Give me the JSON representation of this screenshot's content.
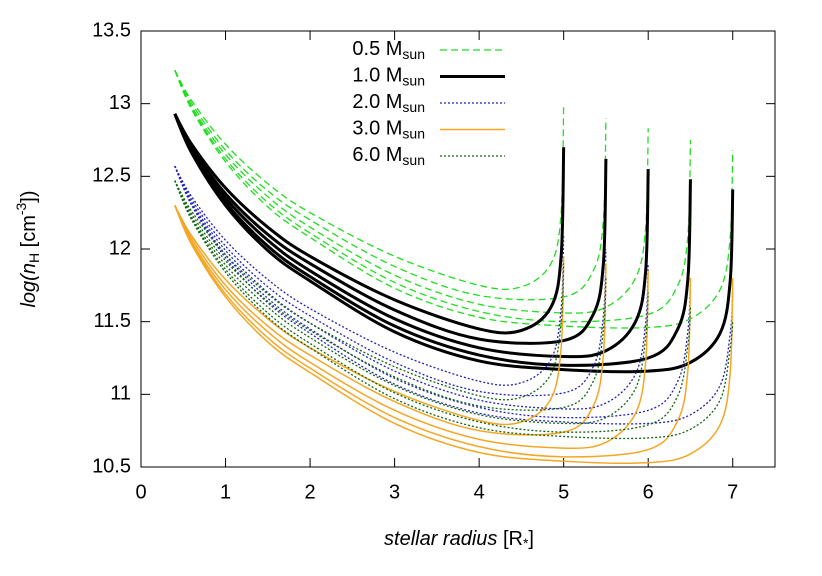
{
  "chart_data": {
    "type": "line",
    "xlabel": [
      "stellar radius",
      " [R",
      "*",
      "]"
    ],
    "ylabel": [
      "log(",
      "n",
      "H",
      " [cm",
      "-3",
      "])"
    ],
    "xlim": [
      0,
      7.5
    ],
    "xticks": [
      0,
      1,
      2,
      3,
      4,
      5,
      6,
      7
    ],
    "ylim": [
      10.5,
      13.5
    ],
    "yticks": [
      10.5,
      11,
      11.5,
      12,
      12.5,
      13,
      13.5
    ],
    "legend": "top-center",
    "series": [
      {
        "name": "0.5 M",
        "name_sub": "sun",
        "color": "#22dd22",
        "dash": "7,4",
        "width": 1.3,
        "curves": [
          {
            "x": [
              0.4,
              0.6,
              1,
              1.5,
              2,
              3,
              4,
              4.5,
              4.85,
              4.97,
              5
            ],
            "values": [
              13.23,
              13.02,
              12.72,
              12.45,
              12.25,
              11.95,
              11.75,
              11.74,
              11.9,
              12.25,
              13.0
            ]
          },
          {
            "x": [
              0.4,
              0.6,
              1,
              1.5,
              2,
              3,
              4,
              5,
              5.35,
              5.47,
              5.5
            ],
            "values": [
              13.23,
              13.0,
              12.68,
              12.4,
              12.2,
              11.88,
              11.68,
              11.67,
              11.85,
              12.2,
              12.9
            ]
          },
          {
            "x": [
              0.4,
              0.6,
              1,
              1.5,
              2,
              3,
              4,
              5,
              5.5,
              5.85,
              5.97,
              6
            ],
            "values": [
              13.23,
              12.98,
              12.65,
              12.36,
              12.15,
              11.82,
              11.62,
              11.56,
              11.6,
              11.8,
              12.15,
              12.83
            ]
          },
          {
            "x": [
              0.4,
              0.6,
              1,
              1.5,
              2,
              3,
              4,
              5,
              6,
              6.35,
              6.47,
              6.5
            ],
            "values": [
              13.23,
              12.97,
              12.62,
              12.32,
              12.11,
              11.77,
              11.57,
              11.5,
              11.55,
              11.75,
              12.1,
              12.75
            ]
          },
          {
            "x": [
              0.4,
              0.6,
              1,
              1.5,
              2,
              3,
              4,
              5,
              6,
              6.5,
              6.85,
              6.97,
              7
            ],
            "values": [
              13.23,
              12.96,
              12.6,
              12.29,
              12.08,
              11.73,
              11.53,
              11.47,
              11.46,
              11.52,
              11.72,
              12.08,
              12.68
            ]
          }
        ]
      },
      {
        "name": "1.0 M",
        "name_sub": "sun",
        "color": "#000000",
        "dash": "none",
        "width": 3,
        "curves": [
          {
            "x": [
              0.4,
              0.6,
              1,
              1.5,
              2,
              3,
              4,
              4.5,
              4.85,
              4.97,
              5
            ],
            "values": [
              12.93,
              12.72,
              12.42,
              12.15,
              11.95,
              11.65,
              11.45,
              11.44,
              11.6,
              11.95,
              12.7
            ]
          },
          {
            "x": [
              0.4,
              0.6,
              1,
              1.5,
              2,
              3,
              4,
              5,
              5.35,
              5.47,
              5.5
            ],
            "values": [
              12.93,
              12.7,
              12.38,
              12.1,
              11.9,
              11.58,
              11.38,
              11.37,
              11.55,
              11.9,
              12.62
            ]
          },
          {
            "x": [
              0.4,
              0.6,
              1,
              1.5,
              2,
              3,
              4,
              5,
              5.5,
              5.85,
              5.97,
              6
            ],
            "values": [
              12.93,
              12.68,
              12.35,
              12.06,
              11.85,
              11.52,
              11.32,
              11.26,
              11.3,
              11.5,
              11.85,
              12.55
            ]
          },
          {
            "x": [
              0.4,
              0.6,
              1,
              1.5,
              2,
              3,
              4,
              5,
              6,
              6.35,
              6.47,
              6.5
            ],
            "values": [
              12.93,
              12.67,
              12.32,
              12.02,
              11.81,
              11.47,
              11.27,
              11.2,
              11.25,
              11.45,
              11.8,
              12.48
            ]
          },
          {
            "x": [
              0.4,
              0.6,
              1,
              1.5,
              2,
              3,
              4,
              5,
              6,
              6.5,
              6.85,
              6.97,
              7
            ],
            "values": [
              12.93,
              12.66,
              12.3,
              11.99,
              11.78,
              11.43,
              11.23,
              11.17,
              11.16,
              11.22,
              11.42,
              11.78,
              12.41
            ]
          }
        ]
      },
      {
        "name": "2.0 M",
        "name_sub": "sun",
        "color": "#2222bb",
        "dash": "2,2",
        "width": 1.3,
        "curves": [
          {
            "x": [
              0.4,
              0.6,
              1,
              1.5,
              2,
              3,
              4,
              4.5,
              4.85,
              4.97,
              5
            ],
            "values": [
              12.57,
              12.36,
              12.06,
              11.79,
              11.59,
              11.29,
              11.09,
              11.08,
              11.24,
              11.59,
              12.1
            ]
          },
          {
            "x": [
              0.4,
              0.6,
              1,
              1.5,
              2,
              3,
              4,
              5,
              5.35,
              5.47,
              5.5
            ],
            "values": [
              12.57,
              12.34,
              12.02,
              11.74,
              11.54,
              11.22,
              11.02,
              11.01,
              11.19,
              11.54,
              12.0
            ]
          },
          {
            "x": [
              0.4,
              0.6,
              1,
              1.5,
              2,
              3,
              4,
              5,
              5.5,
              5.85,
              5.97,
              6
            ],
            "values": [
              12.57,
              12.32,
              11.99,
              11.7,
              11.49,
              11.16,
              10.96,
              10.9,
              10.94,
              11.14,
              11.49,
              11.9
            ]
          },
          {
            "x": [
              0.4,
              0.6,
              1,
              1.5,
              2,
              3,
              4,
              5,
              6,
              6.35,
              6.47,
              6.5
            ],
            "values": [
              12.57,
              12.31,
              11.96,
              11.66,
              11.45,
              11.11,
              10.91,
              10.84,
              10.89,
              11.09,
              11.44,
              11.8
            ]
          },
          {
            "x": [
              0.4,
              0.6,
              1,
              1.5,
              2,
              3,
              4,
              5,
              6,
              6.5,
              6.85,
              6.97,
              7
            ],
            "values": [
              12.57,
              12.3,
              11.94,
              11.63,
              11.42,
              11.07,
              10.87,
              10.81,
              10.8,
              10.86,
              11.06,
              11.42,
              11.7
            ]
          }
        ]
      },
      {
        "name": "3.0 M",
        "name_sub": "sun",
        "color": "#f5a623",
        "dash": "none",
        "width": 1.5,
        "curves": [
          {
            "x": [
              0.4,
              0.6,
              1,
              1.5,
              2,
              3,
              4,
              4.5,
              4.85,
              4.97,
              5
            ],
            "values": [
              12.3,
              12.09,
              11.79,
              11.52,
              11.32,
              11.02,
              10.82,
              10.81,
              10.97,
              11.32,
              11.95
            ]
          },
          {
            "x": [
              0.4,
              0.6,
              1,
              1.5,
              2,
              3,
              4,
              5,
              5.35,
              5.47,
              5.5
            ],
            "values": [
              12.3,
              12.07,
              11.75,
              11.47,
              11.27,
              10.95,
              10.75,
              10.74,
              10.92,
              11.27,
              11.9
            ]
          },
          {
            "x": [
              0.4,
              0.6,
              1,
              1.5,
              2,
              3,
              4,
              5,
              5.5,
              5.85,
              5.97,
              6
            ],
            "values": [
              12.3,
              12.05,
              11.72,
              11.43,
              11.22,
              10.89,
              10.69,
              10.63,
              10.67,
              10.87,
              11.22,
              11.85
            ]
          },
          {
            "x": [
              0.4,
              0.6,
              1,
              1.5,
              2,
              3,
              4,
              5,
              6,
              6.35,
              6.47,
              6.5
            ],
            "values": [
              12.3,
              12.04,
              11.69,
              11.39,
              11.18,
              10.84,
              10.64,
              10.57,
              10.62,
              10.82,
              11.17,
              11.8
            ]
          },
          {
            "x": [
              0.4,
              0.6,
              1,
              1.5,
              2,
              3,
              4,
              5,
              6,
              6.5,
              6.85,
              6.97,
              7
            ],
            "values": [
              12.3,
              12.03,
              11.67,
              11.36,
              11.15,
              10.8,
              10.6,
              10.54,
              10.53,
              10.59,
              10.79,
              11.15,
              11.8
            ]
          }
        ]
      },
      {
        "name": "6.0 M",
        "name_sub": "sun",
        "color": "#116611",
        "dash": "2,2",
        "width": 1.3,
        "curves": [
          {
            "x": [
              0.4,
              0.6,
              1,
              1.5,
              2,
              3,
              4,
              4.5,
              4.85,
              4.97,
              5
            ],
            "values": [
              12.47,
              12.26,
              11.96,
              11.69,
              11.49,
              11.19,
              10.99,
              10.98,
              11.14,
              11.49,
              11.9
            ]
          },
          {
            "x": [
              0.4,
              0.6,
              1,
              1.5,
              2,
              3,
              4,
              5,
              5.35,
              5.47,
              5.5
            ],
            "values": [
              12.47,
              12.24,
              11.92,
              11.64,
              11.44,
              11.12,
              10.92,
              10.91,
              11.09,
              11.44,
              11.8
            ]
          },
          {
            "x": [
              0.4,
              0.6,
              1,
              1.5,
              2,
              3,
              4,
              5,
              5.5,
              5.85,
              5.97,
              6
            ],
            "values": [
              12.47,
              12.22,
              11.89,
              11.6,
              11.39,
              11.06,
              10.86,
              10.8,
              10.84,
              11.04,
              11.39,
              11.7
            ]
          },
          {
            "x": [
              0.4,
              0.6,
              1,
              1.5,
              2,
              3,
              4,
              5,
              6,
              6.35,
              6.47,
              6.5
            ],
            "values": [
              12.47,
              12.21,
              11.86,
              11.56,
              11.35,
              11.01,
              10.81,
              10.74,
              10.79,
              10.99,
              11.34,
              11.6
            ]
          },
          {
            "x": [
              0.4,
              0.6,
              1,
              1.5,
              2,
              3,
              4,
              5,
              6,
              6.5,
              6.85,
              6.97,
              7
            ],
            "values": [
              12.47,
              12.2,
              11.84,
              11.53,
              11.32,
              10.97,
              10.77,
              10.71,
              10.7,
              10.76,
              10.96,
              11.32,
              11.5
            ]
          }
        ]
      }
    ]
  }
}
